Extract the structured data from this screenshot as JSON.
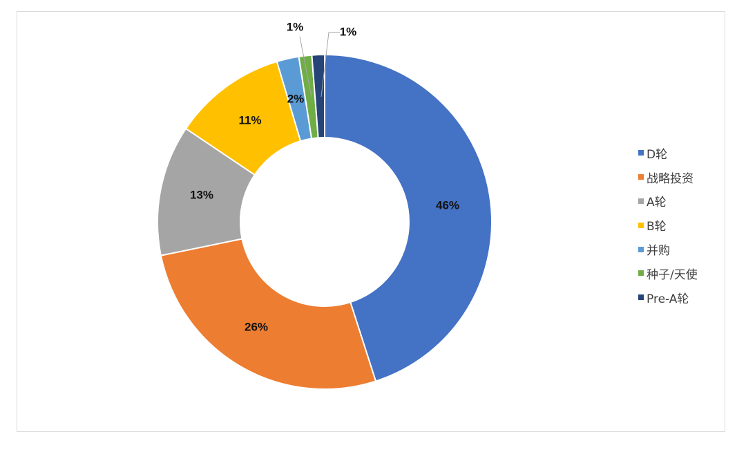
{
  "chart_data": {
    "type": "pie",
    "donut": true,
    "categories": [
      "D轮",
      "战略投资",
      "A轮",
      "B轮",
      "并购",
      "种子/天使",
      "Pre-A轮"
    ],
    "values": [
      46,
      26,
      13,
      11,
      2,
      1,
      1
    ],
    "labels": [
      "46%",
      "26%",
      "13%",
      "11%",
      "2%",
      "1%",
      "1%"
    ],
    "colors": [
      "#4472C4",
      "#ED7D31",
      "#A5A5A5",
      "#FFC000",
      "#5B9BD5",
      "#70AD47",
      "#264478"
    ],
    "legend_position": "right",
    "title": ""
  }
}
